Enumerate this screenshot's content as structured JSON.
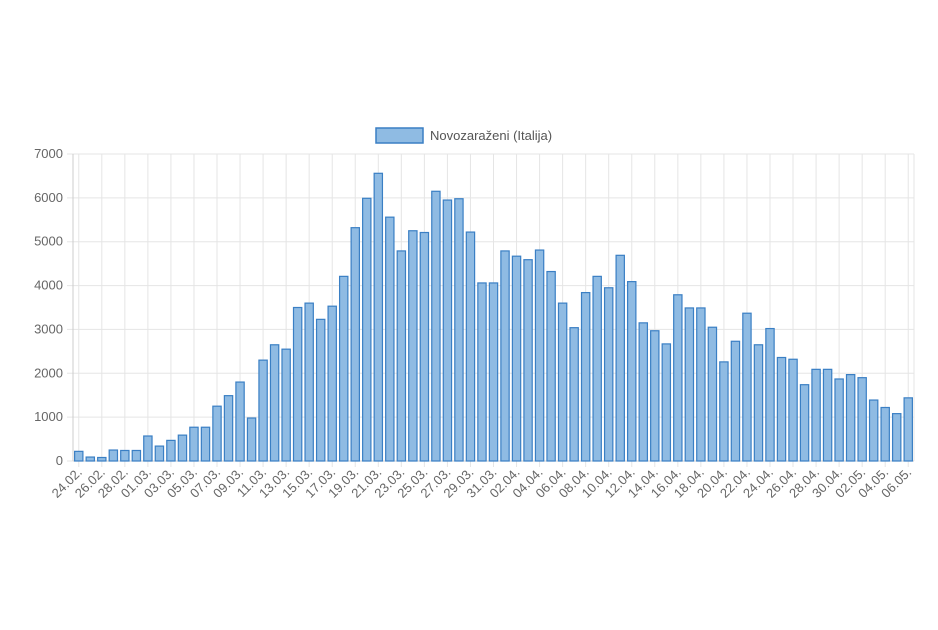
{
  "chart_data": {
    "type": "bar",
    "legend": {
      "label": "Novozaraženi (Italija)",
      "placement": "top"
    },
    "colors": {
      "bar_fill": "#8fbbe3",
      "bar_stroke": "#3a7fc4",
      "grid": "#e5e5e5",
      "axis": "#cccccc",
      "tick_text": "#666666"
    },
    "ylim": [
      0,
      7000
    ],
    "yticks": [
      0,
      1000,
      2000,
      3000,
      4000,
      5000,
      6000,
      7000
    ],
    "grid": true,
    "categories": [
      "24.02.",
      "25.02.",
      "26.02.",
      "27.02.",
      "28.02.",
      "29.02.",
      "01.03.",
      "02.03.",
      "03.03.",
      "04.03.",
      "05.03.",
      "06.03.",
      "07.03.",
      "08.03.",
      "09.03.",
      "10.03.",
      "11.03.",
      "12.03.",
      "13.03.",
      "14.03.",
      "15.03.",
      "16.03.",
      "17.03.",
      "18.03.",
      "19.03.",
      "20.03.",
      "21.03.",
      "22.03.",
      "23.03.",
      "24.03.",
      "25.03.",
      "26.03.",
      "27.03.",
      "28.03.",
      "29.03.",
      "30.03.",
      "31.03.",
      "01.04.",
      "02.04.",
      "03.04.",
      "04.04.",
      "05.04.",
      "06.04.",
      "07.04.",
      "08.04.",
      "09.04.",
      "10.04.",
      "11.04.",
      "12.04.",
      "13.04.",
      "14.04.",
      "15.04.",
      "16.04.",
      "17.04.",
      "18.04.",
      "19.04.",
      "20.04.",
      "21.04.",
      "22.04.",
      "23.04.",
      "24.04.",
      "25.04.",
      "26.04.",
      "27.04.",
      "28.04.",
      "29.04.",
      "30.04.",
      "01.05.",
      "02.05.",
      "03.05.",
      "04.05.",
      "05.05.",
      "06.05."
    ],
    "visible_tick_labels": [
      "24.02.",
      "26.02.",
      "28.02.",
      "01.03.",
      "03.03.",
      "05.03.",
      "07.03.",
      "09.03.",
      "11.03.",
      "13.03.",
      "15.03.",
      "17.03.",
      "19.03.",
      "21.03.",
      "23.03.",
      "25.03.",
      "27.03.",
      "29.03.",
      "31.03.",
      "02.04.",
      "04.04.",
      "06.04.",
      "08.04.",
      "10.04.",
      "12.04.",
      "14.04.",
      "16.04.",
      "18.04.",
      "20.04.",
      "22.04.",
      "24.04.",
      "26.04.",
      "28.04.",
      "30.04.",
      "02.05.",
      "04.05.",
      "06.05."
    ],
    "values": [
      220,
      90,
      80,
      250,
      240,
      240,
      570,
      340,
      470,
      590,
      770,
      770,
      1250,
      1490,
      1800,
      980,
      2300,
      2650,
      2550,
      3500,
      3600,
      3230,
      3530,
      4210,
      5320,
      5990,
      6560,
      5560,
      4790,
      5250,
      5210,
      6150,
      5950,
      5980,
      5220,
      4060,
      4060,
      4790,
      4670,
      4590,
      4810,
      4320,
      3600,
      3040,
      3840,
      4210,
      3950,
      4690,
      4090,
      3150,
      2970,
      2670,
      3790,
      3490,
      3490,
      3050,
      2260,
      2730,
      3370,
      2650,
      3020,
      2360,
      2320,
      1740,
      2090,
      2090,
      1870,
      1970,
      1900,
      1390,
      1220,
      1080,
      1440
    ]
  }
}
